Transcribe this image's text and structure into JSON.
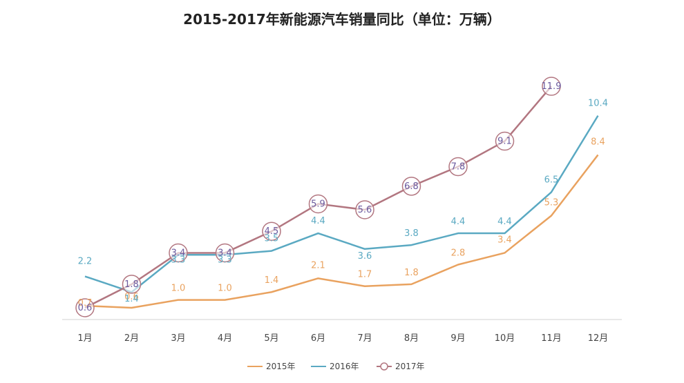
{
  "chart_data": {
    "type": "line",
    "title": "2015-2017年新能源汽车销量同比（单位：万辆）",
    "categories": [
      "1月",
      "2月",
      "3月",
      "4月",
      "5月",
      "6月",
      "7月",
      "8月",
      "9月",
      "10月",
      "11月",
      "12月"
    ],
    "series": [
      {
        "name": "2015年",
        "color": "#e9a25f",
        "values": [
          0.7,
          0.6,
          1.0,
          1.0,
          1.4,
          2.1,
          1.7,
          1.8,
          2.8,
          3.4,
          5.3,
          8.4
        ]
      },
      {
        "name": "2016年",
        "color": "#5aa9c2",
        "values": [
          2.2,
          1.4,
          3.3,
          3.3,
          3.5,
          4.4,
          3.6,
          3.8,
          4.4,
          4.4,
          6.5,
          10.4
        ]
      },
      {
        "name": "2017年",
        "color": "#b27680",
        "values": [
          0.6,
          1.8,
          3.4,
          3.4,
          4.5,
          5.9,
          5.6,
          6.8,
          7.8,
          9.1,
          11.9,
          null
        ]
      }
    ],
    "ylim": [
      0,
      13
    ],
    "grid": false,
    "legend_position": "bottom"
  }
}
